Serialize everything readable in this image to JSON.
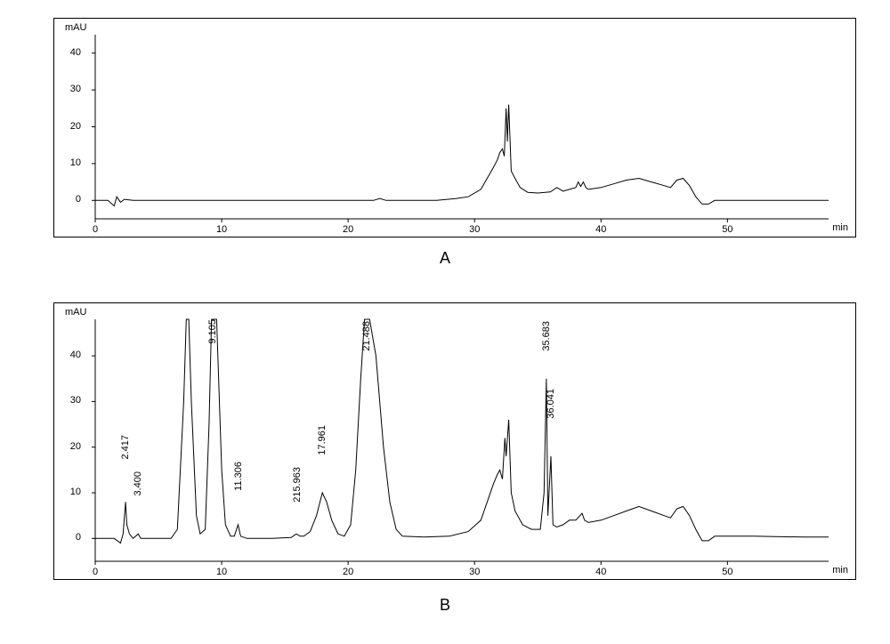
{
  "figure": {
    "panels": {
      "A": {
        "label": "A",
        "type": "line",
        "y_unit": "mAU",
        "x_unit": "min",
        "xlim": [
          0,
          58
        ],
        "ylim": [
          -5,
          45
        ],
        "xtick_step": 10,
        "ytick_labels": [
          0,
          10,
          20,
          30,
          40
        ],
        "xtick_labels": [
          0,
          10,
          20,
          30,
          40,
          50
        ],
        "line_color": "#000000",
        "line_width": 1,
        "background_color": "#ffffff",
        "border_color": "#000000",
        "tick_fontsize": 11,
        "unit_fontsize": 11,
        "series": [
          [
            0.0,
            0.0
          ],
          [
            1.0,
            0.0
          ],
          [
            1.5,
            -1.5
          ],
          [
            1.7,
            1.0
          ],
          [
            2.0,
            -0.5
          ],
          [
            2.3,
            0.3
          ],
          [
            3.0,
            0.0
          ],
          [
            5.0,
            0.0
          ],
          [
            10.0,
            0.0
          ],
          [
            15.0,
            0.0
          ],
          [
            20.0,
            0.0
          ],
          [
            22.0,
            0.0
          ],
          [
            22.5,
            0.5
          ],
          [
            23.0,
            0.0
          ],
          [
            25.0,
            0.0
          ],
          [
            27.0,
            0.0
          ],
          [
            28.5,
            0.5
          ],
          [
            29.5,
            1.0
          ],
          [
            30.5,
            3.0
          ],
          [
            31.0,
            6.0
          ],
          [
            31.5,
            9.0
          ],
          [
            31.8,
            11.0
          ],
          [
            32.0,
            13.0
          ],
          [
            32.2,
            14.0
          ],
          [
            32.35,
            12.0
          ],
          [
            32.5,
            25.0
          ],
          [
            32.6,
            16.0
          ],
          [
            32.7,
            26.0
          ],
          [
            32.9,
            8.0
          ],
          [
            33.2,
            6.0
          ],
          [
            33.6,
            3.5
          ],
          [
            34.2,
            2.2
          ],
          [
            35.0,
            2.0
          ],
          [
            36.0,
            2.3
          ],
          [
            36.5,
            3.5
          ],
          [
            37.0,
            2.5
          ],
          [
            37.5,
            3.0
          ],
          [
            38.0,
            3.5
          ],
          [
            38.2,
            5.0
          ],
          [
            38.4,
            3.8
          ],
          [
            38.6,
            5.0
          ],
          [
            38.8,
            3.5
          ],
          [
            39.0,
            3.0
          ],
          [
            40.0,
            3.5
          ],
          [
            41.0,
            4.5
          ],
          [
            42.0,
            5.5
          ],
          [
            43.0,
            6.0
          ],
          [
            44.0,
            5.0
          ],
          [
            45.0,
            4.0
          ],
          [
            45.5,
            3.5
          ],
          [
            46.0,
            5.5
          ],
          [
            46.5,
            6.0
          ],
          [
            47.0,
            4.0
          ],
          [
            47.5,
            1.0
          ],
          [
            48.0,
            -1.0
          ],
          [
            48.5,
            -1.0
          ],
          [
            49.0,
            0.0
          ],
          [
            52.0,
            0.0
          ],
          [
            56.0,
            0.0
          ],
          [
            58.0,
            0.0
          ]
        ],
        "peaks": []
      },
      "B": {
        "label": "B",
        "type": "line",
        "y_unit": "mAU",
        "x_unit": "min",
        "xlim": [
          0,
          58
        ],
        "ylim": [
          -5,
          48
        ],
        "xtick_step": 10,
        "ytick_labels": [
          0,
          10,
          20,
          30,
          40
        ],
        "xtick_labels": [
          0,
          10,
          20,
          30,
          40,
          50
        ],
        "line_color": "#000000",
        "line_width": 1,
        "background_color": "#ffffff",
        "border_color": "#000000",
        "tick_fontsize": 11,
        "unit_fontsize": 11,
        "series": [
          [
            0.0,
            0.0
          ],
          [
            1.5,
            0.0
          ],
          [
            2.0,
            -1.0
          ],
          [
            2.2,
            1.0
          ],
          [
            2.4,
            8.0
          ],
          [
            2.5,
            3.0
          ],
          [
            2.7,
            1.0
          ],
          [
            3.0,
            0.0
          ],
          [
            3.4,
            1.0
          ],
          [
            3.6,
            0.0
          ],
          [
            5.0,
            0.0
          ],
          [
            6.0,
            0.0
          ],
          [
            6.5,
            2.0
          ],
          [
            7.0,
            30.0
          ],
          [
            7.2,
            48.0
          ],
          [
            7.4,
            48.0
          ],
          [
            7.6,
            30.0
          ],
          [
            8.0,
            5.0
          ],
          [
            8.3,
            1.0
          ],
          [
            8.7,
            2.0
          ],
          [
            9.0,
            25.0
          ],
          [
            9.2,
            48.0
          ],
          [
            9.6,
            48.0
          ],
          [
            10.0,
            15.0
          ],
          [
            10.3,
            3.0
          ],
          [
            10.7,
            0.5
          ],
          [
            11.0,
            0.5
          ],
          [
            11.3,
            3.0
          ],
          [
            11.5,
            0.5
          ],
          [
            12.0,
            0.0
          ],
          [
            14.0,
            0.0
          ],
          [
            15.5,
            0.2
          ],
          [
            15.9,
            1.0
          ],
          [
            16.2,
            0.5
          ],
          [
            16.5,
            0.5
          ],
          [
            17.0,
            1.5
          ],
          [
            17.5,
            5.0
          ],
          [
            17.96,
            10.0
          ],
          [
            18.3,
            8.0
          ],
          [
            18.7,
            4.0
          ],
          [
            19.2,
            1.0
          ],
          [
            19.7,
            0.5
          ],
          [
            20.2,
            3.0
          ],
          [
            20.6,
            15.0
          ],
          [
            21.0,
            35.0
          ],
          [
            21.3,
            48.0
          ],
          [
            21.7,
            48.0
          ],
          [
            22.2,
            40.0
          ],
          [
            22.8,
            20.0
          ],
          [
            23.3,
            8.0
          ],
          [
            23.8,
            2.0
          ],
          [
            24.3,
            0.5
          ],
          [
            26.0,
            0.3
          ],
          [
            28.0,
            0.5
          ],
          [
            29.5,
            1.5
          ],
          [
            30.5,
            4.0
          ],
          [
            31.0,
            8.0
          ],
          [
            31.5,
            12.0
          ],
          [
            31.8,
            14.0
          ],
          [
            32.0,
            15.0
          ],
          [
            32.2,
            13.0
          ],
          [
            32.4,
            22.0
          ],
          [
            32.5,
            18.0
          ],
          [
            32.7,
            26.0
          ],
          [
            32.9,
            10.0
          ],
          [
            33.2,
            6.0
          ],
          [
            33.8,
            3.0
          ],
          [
            34.5,
            2.0
          ],
          [
            35.2,
            2.0
          ],
          [
            35.5,
            10.0
          ],
          [
            35.68,
            35.0
          ],
          [
            35.8,
            5.0
          ],
          [
            36.04,
            18.0
          ],
          [
            36.2,
            3.0
          ],
          [
            36.5,
            2.5
          ],
          [
            37.0,
            3.0
          ],
          [
            37.5,
            4.0
          ],
          [
            38.0,
            4.0
          ],
          [
            38.5,
            5.5
          ],
          [
            38.7,
            4.0
          ],
          [
            39.0,
            3.5
          ],
          [
            40.0,
            4.0
          ],
          [
            41.0,
            5.0
          ],
          [
            42.0,
            6.0
          ],
          [
            43.0,
            7.0
          ],
          [
            44.0,
            6.0
          ],
          [
            45.0,
            5.0
          ],
          [
            45.5,
            4.5
          ],
          [
            46.0,
            6.5
          ],
          [
            46.5,
            7.0
          ],
          [
            47.0,
            5.0
          ],
          [
            47.5,
            2.0
          ],
          [
            48.0,
            -0.5
          ],
          [
            48.5,
            -0.5
          ],
          [
            49.0,
            0.5
          ],
          [
            52.0,
            0.5
          ],
          [
            56.0,
            0.3
          ],
          [
            58.0,
            0.3
          ]
        ],
        "peaks": [
          {
            "rt": "2.417",
            "x": 2.417,
            "y_top": 13
          },
          {
            "rt": "3.400",
            "x": 3.4,
            "y_top": 5
          },
          {
            "rt": "11.306",
            "x": 11.306,
            "y_top": 7
          },
          {
            "rt": "215.963",
            "x": 15.963,
            "y_top": 6
          },
          {
            "rt": "17.961",
            "x": 17.961,
            "y_top": 15
          },
          {
            "rt": "21.488",
            "x": 21.488,
            "y_top": 48
          },
          {
            "rt": "35.683",
            "x": 35.683,
            "y_top": 40
          },
          {
            "rt": "36.041",
            "x": 36.041,
            "y_top": 23
          }
        ],
        "top_peak_labels": [
          {
            "rt_frag": "9.105",
            "x": 9.3
          }
        ]
      }
    }
  }
}
